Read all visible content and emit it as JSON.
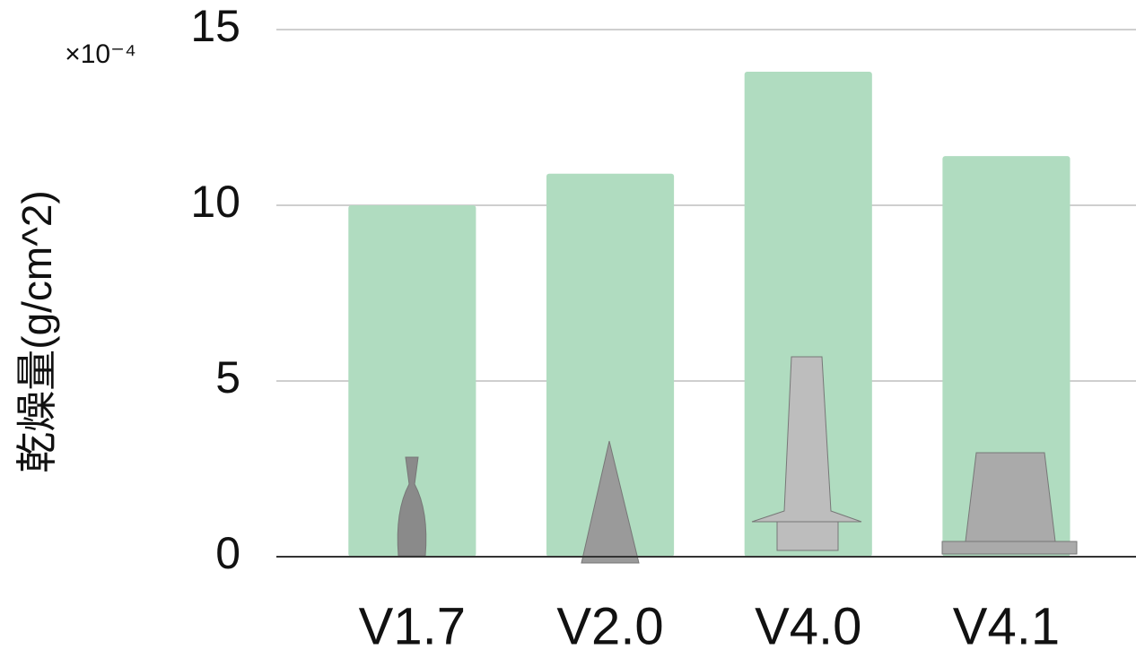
{
  "chart_data": {
    "type": "bar",
    "y_label": "乾燥量(g/cm^2)",
    "y_multiplier": "×10⁻⁴",
    "categories": [
      "V1.7",
      "V2.0",
      "V4.0",
      "V4.1"
    ],
    "values": [
      10,
      10.9,
      13.8,
      11.4
    ],
    "color": "#b0dcc0",
    "ylim": [
      0,
      15
    ],
    "yticks": [
      0,
      5,
      10,
      15
    ],
    "grid": true
  }
}
